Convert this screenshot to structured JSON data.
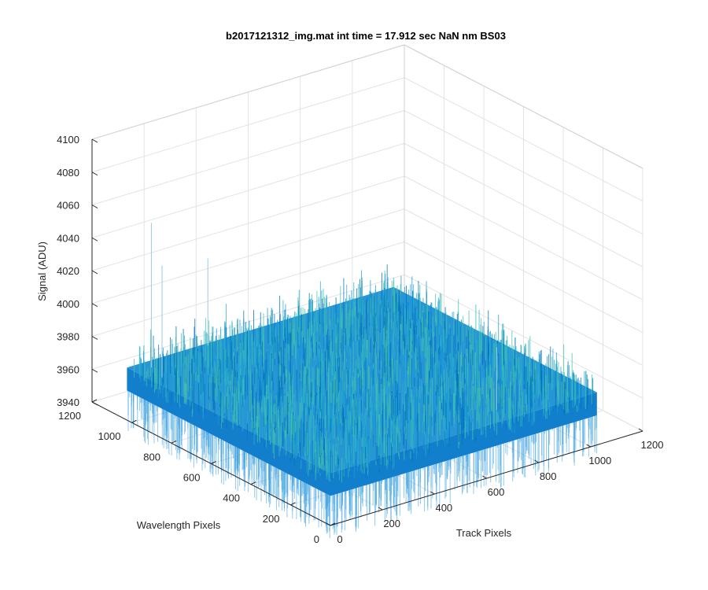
{
  "chart_data": {
    "type": "surface",
    "title": "b2017121312_img.mat int time = 17.912 sec  NaN nm BS03",
    "xlabel": "Track Pixels",
    "ylabel": "Wavelength Pixels",
    "zlabel": "Signal (ADU)",
    "xlim": [
      0,
      1200
    ],
    "ylim": [
      0,
      1200
    ],
    "zlim": [
      3940,
      4100
    ],
    "x_ticks": [
      "0",
      "200",
      "400",
      "600",
      "800",
      "1000",
      "1200"
    ],
    "y_ticks": [
      "0",
      "200",
      "400",
      "600",
      "800",
      "1000",
      "1200"
    ],
    "z_ticks": [
      "3940",
      "3960",
      "3980",
      "4000",
      "4020",
      "4040",
      "4060",
      "4080",
      "4100"
    ],
    "data_extent": {
      "x": [
        0,
        1024
      ],
      "y": [
        0,
        1024
      ]
    },
    "signal_mean": 3972,
    "signal_noise_range": [
      3945,
      4060
    ],
    "grid": true,
    "colormap": [
      "#0072bd",
      "#1a9bd9",
      "#2bb3c8",
      "#47c2a9"
    ]
  }
}
